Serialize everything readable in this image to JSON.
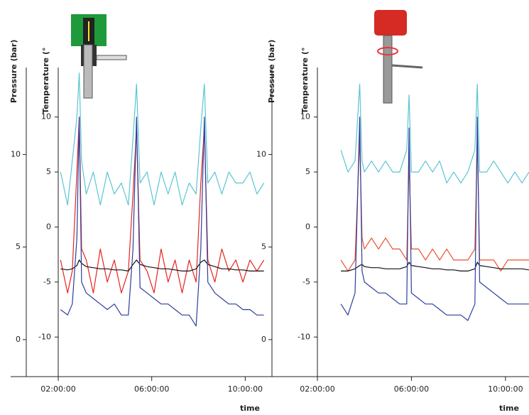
{
  "chart_data": [
    {
      "type": "line",
      "x_label": "time",
      "y_label": "Temperature (°",
      "y2_label": "Pressure (bar)",
      "xlim": [
        2,
        10.9
      ],
      "xticks": [
        {
          "value": 2,
          "label": "02:00:00"
        },
        {
          "value": 6,
          "label": "06:00:00"
        },
        {
          "value": 10,
          "label": "10:00:00"
        }
      ],
      "ylim": [
        -13.6,
        14.5
      ],
      "yticks": [
        -10,
        -5,
        0,
        5,
        10
      ],
      "y2lim": [
        -2,
        14.7
      ],
      "y2ticks": [
        0,
        5,
        10
      ],
      "x": [
        2.1,
        2.4,
        2.6,
        2.8,
        2.9,
        3.0,
        3.2,
        3.5,
        3.8,
        4.1,
        4.4,
        4.7,
        5.0,
        5.2,
        5.35,
        5.5,
        5.8,
        6.1,
        6.4,
        6.7,
        7.0,
        7.3,
        7.6,
        7.9,
        8.1,
        8.25,
        8.4,
        8.7,
        9.0,
        9.3,
        9.6,
        9.9,
        10.2,
        10.5,
        10.8
      ],
      "series": [
        {
          "color": "#5bc4d4",
          "values": [
            5,
            2,
            6,
            10,
            14,
            6,
            3,
            5,
            2,
            5,
            3,
            4,
            2,
            8,
            13,
            4,
            5,
            2,
            5,
            3,
            5,
            2,
            4,
            3,
            9,
            13,
            4,
            5,
            3,
            5,
            4,
            4,
            5,
            3,
            4
          ]
        },
        {
          "color": "#e8231f",
          "values": [
            -3,
            -6,
            -4,
            5,
            10,
            -2,
            -3,
            -6,
            -2,
            -5,
            -3,
            -6,
            -4,
            3,
            9,
            -3,
            -4,
            -6,
            -2,
            -5,
            -3,
            -6,
            -3,
            -5,
            4,
            9,
            -3,
            -5,
            -2,
            -4,
            -3,
            -5,
            -3,
            -4,
            -3
          ]
        },
        {
          "color": "#111111",
          "values": [
            -3.8,
            -3.9,
            -3.8,
            -3.5,
            -3,
            -3.3,
            -3.6,
            -3.7,
            -3.8,
            -3.8,
            -3.9,
            -3.9,
            -4,
            -3.4,
            -3,
            -3.4,
            -3.6,
            -3.7,
            -3.8,
            -3.8,
            -3.9,
            -4,
            -4,
            -3.8,
            -3.2,
            -3,
            -3.4,
            -3.6,
            -3.8,
            -3.8,
            -3.9,
            -3.9,
            -4,
            -4,
            -4
          ]
        },
        {
          "color": "#2c3e9c",
          "values": [
            -7.5,
            -8,
            -7,
            -1,
            10,
            -5,
            -6,
            -6.5,
            -7,
            -7.5,
            -7,
            -8,
            -8,
            -2,
            10,
            -5.5,
            -6,
            -6.5,
            -7,
            -7,
            -7.5,
            -8,
            -8,
            -9,
            -2,
            10,
            -5,
            -6,
            -6.5,
            -7,
            -7,
            -7.5,
            -7.5,
            -8,
            -8
          ]
        }
      ]
    },
    {
      "type": "line",
      "x_label": "time",
      "y_label": "Temperature (°",
      "y2_label": "Pressure (bar)",
      "xlim": [
        2,
        11
      ],
      "xticks": [
        {
          "value": 2,
          "label": "02:00:00"
        },
        {
          "value": 6,
          "label": "06:00:00"
        },
        {
          "value": 10,
          "label": "10:00:00"
        }
      ],
      "ylim": [
        -13.6,
        14.5
      ],
      "yticks": [
        -10,
        -5,
        0,
        5,
        10
      ],
      "y2lim": [
        -2,
        14.7
      ],
      "y2ticks": [
        0,
        5,
        10
      ],
      "x": [
        3.0,
        3.3,
        3.6,
        3.8,
        3.9,
        4.0,
        4.3,
        4.6,
        4.9,
        5.2,
        5.5,
        5.8,
        5.9,
        6.0,
        6.3,
        6.6,
        6.9,
        7.2,
        7.5,
        7.8,
        8.1,
        8.4,
        8.7,
        8.8,
        8.9,
        9.2,
        9.5,
        9.8,
        10.1,
        10.4,
        10.7,
        11.0
      ],
      "series": [
        {
          "color": "#5bc4d4",
          "values": [
            7,
            5,
            6,
            13,
            6,
            5,
            6,
            5,
            6,
            5,
            5,
            7,
            12,
            5,
            5,
            6,
            5,
            6,
            4,
            5,
            4,
            5,
            7,
            13,
            5,
            5,
            6,
            5,
            4,
            5,
            4,
            5
          ]
        },
        {
          "color": "#e8502f",
          "values": [
            -3,
            -4,
            -3,
            8,
            -1,
            -2,
            -1,
            -2,
            -1,
            -2,
            -2,
            -3,
            6,
            -2,
            -2,
            -3,
            -2,
            -3,
            -2,
            -3,
            -3,
            -3,
            -2,
            8,
            -3,
            -3,
            -3,
            -4,
            -3,
            -3,
            -3,
            -3
          ]
        },
        {
          "color": "#111111",
          "values": [
            -4,
            -4,
            -3.8,
            -3.5,
            -3.4,
            -3.6,
            -3.7,
            -3.7,
            -3.8,
            -3.8,
            -3.8,
            -3.6,
            -3.2,
            -3.5,
            -3.6,
            -3.7,
            -3.8,
            -3.8,
            -3.9,
            -3.9,
            -4,
            -4,
            -3.8,
            -3.2,
            -3.5,
            -3.6,
            -3.7,
            -3.8,
            -3.8,
            -3.8,
            -3.8,
            -3.9
          ]
        },
        {
          "color": "#2c3e9c",
          "values": [
            -7,
            -8,
            -6,
            10,
            -4,
            -5,
            -5.5,
            -6,
            -6,
            -6.5,
            -7,
            -7,
            9,
            -6,
            -6.5,
            -7,
            -7,
            -7.5,
            -8,
            -8,
            -8,
            -8.5,
            -7,
            10,
            -5,
            -5.5,
            -6,
            -6.5,
            -7,
            -7,
            -7,
            -7
          ]
        }
      ]
    }
  ]
}
